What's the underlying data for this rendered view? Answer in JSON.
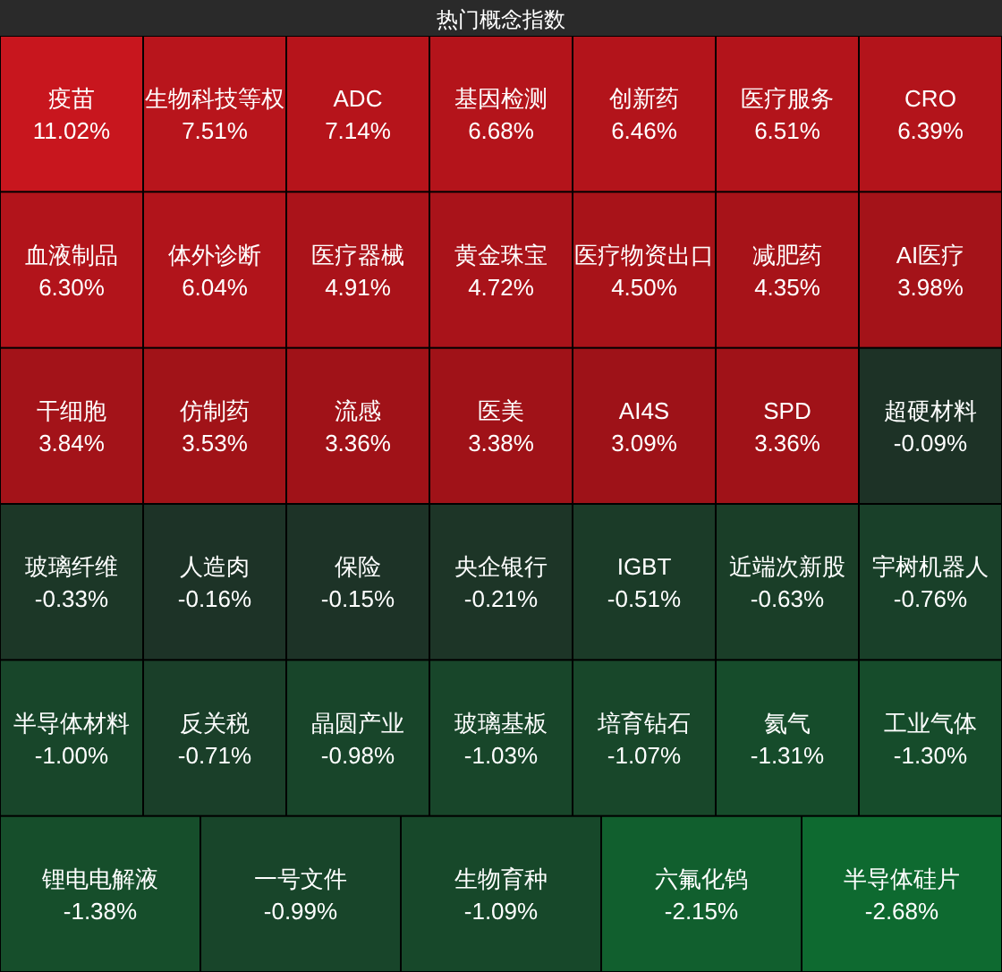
{
  "chart_data": {
    "type": "other",
    "title": "热门概念指数",
    "categories": [
      "疫苗",
      "生物科技等权",
      "ADC",
      "基因检测",
      "创新药",
      "医疗服务",
      "CRO",
      "血液制品",
      "体外诊断",
      "医疗器械",
      "黄金珠宝",
      "医疗物资出口",
      "减肥药",
      "AI医疗",
      "干细胞",
      "仿制药",
      "流感",
      "医美",
      "AI4S",
      "SPD",
      "超硬材料",
      "玻璃纤维",
      "人造肉",
      "保险",
      "央企银行",
      "IGBT",
      "近端次新股",
      "宇树机器人",
      "半导体材料",
      "反关税",
      "晶圆产业",
      "玻璃基板",
      "培育钻石",
      "氦气",
      "工业气体",
      "锂电电解液",
      "一号文件",
      "生物育种",
      "六氟化钨",
      "半导体硅片"
    ],
    "values": [
      11.02,
      7.51,
      7.14,
      6.68,
      6.46,
      6.51,
      6.39,
      6.3,
      6.04,
      4.91,
      4.72,
      4.5,
      4.35,
      3.98,
      3.84,
      3.53,
      3.36,
      3.38,
      3.09,
      3.36,
      -0.09,
      -0.33,
      -0.16,
      -0.15,
      -0.21,
      -0.51,
      -0.63,
      -0.76,
      -1.0,
      -0.71,
      -0.98,
      -1.03,
      -1.07,
      -1.31,
      -1.3,
      -1.38,
      -0.99,
      -1.09,
      -2.15,
      -2.68
    ],
    "value_labels": [
      "11.02%",
      "7.51%",
      "7.14%",
      "6.68%",
      "6.46%",
      "6.51%",
      "6.39%",
      "6.30%",
      "6.04%",
      "4.91%",
      "4.72%",
      "4.50%",
      "4.35%",
      "3.98%",
      "3.84%",
      "3.53%",
      "3.36%",
      "3.38%",
      "3.09%",
      "3.36%",
      "-0.09%",
      "-0.33%",
      "-0.16%",
      "-0.15%",
      "-0.21%",
      "-0.51%",
      "-0.63%",
      "-0.76%",
      "-1.00%",
      "-0.71%",
      "-0.98%",
      "-1.03%",
      "-1.07%",
      "-1.31%",
      "-1.30%",
      "-1.38%",
      "-0.99%",
      "-1.09%",
      "-2.15%",
      "-2.68%"
    ]
  }
}
